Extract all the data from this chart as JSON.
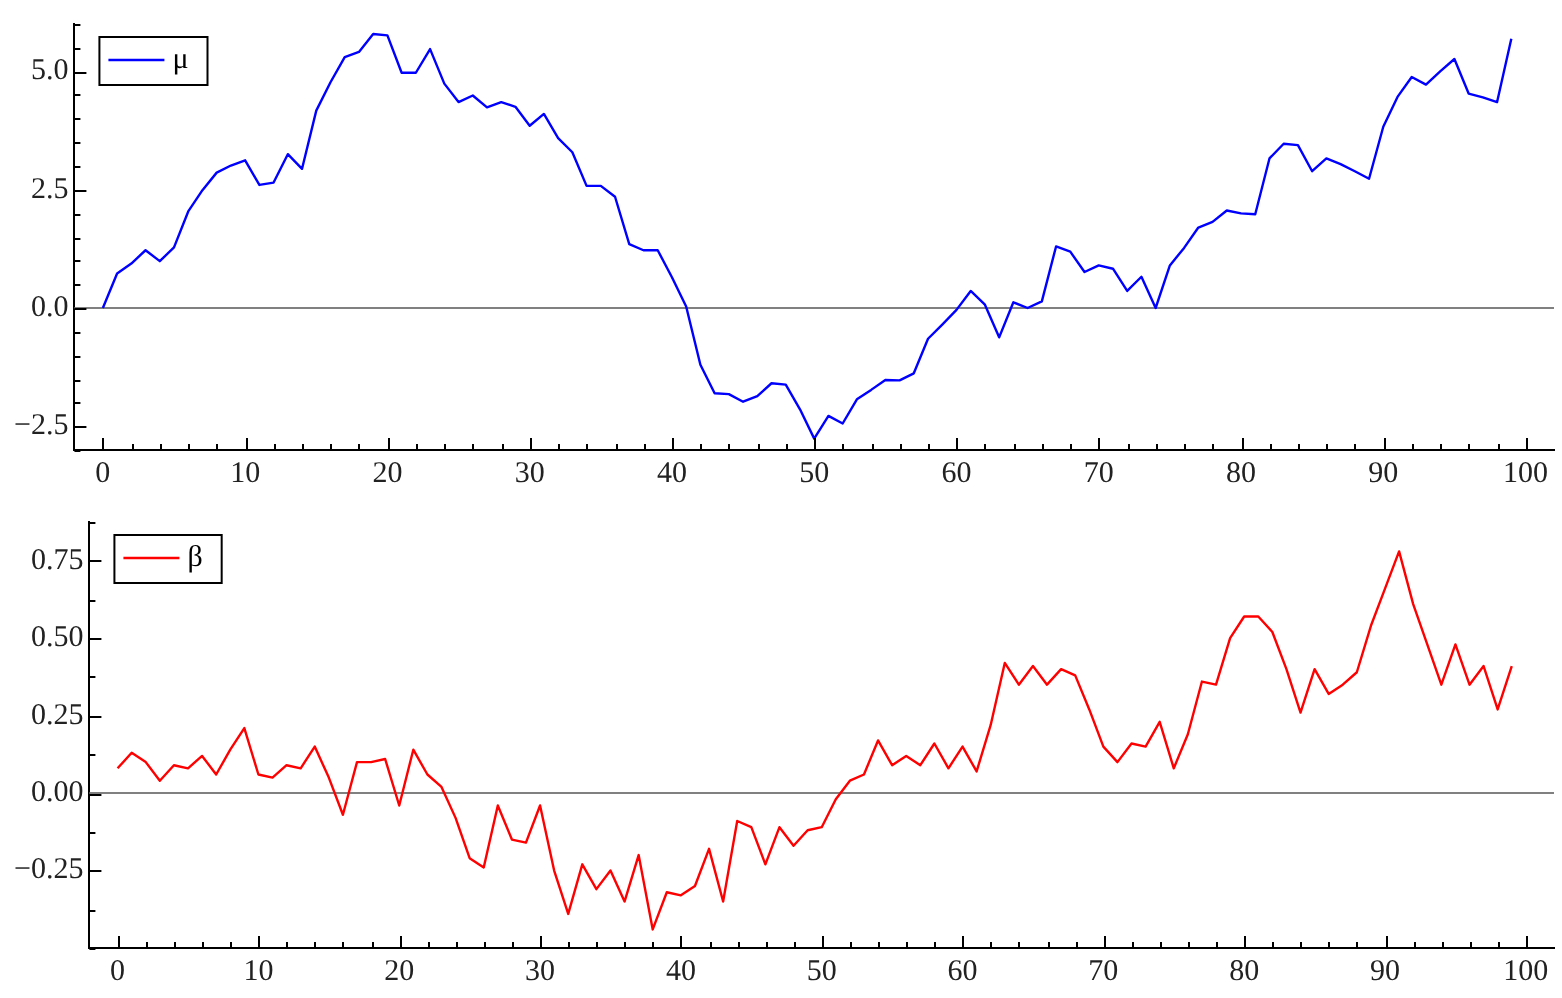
{
  "chart_data": [
    {
      "type": "line",
      "x": [
        0,
        1,
        2,
        3,
        4,
        5,
        6,
        7,
        8,
        9,
        10,
        11,
        12,
        13,
        14,
        15,
        16,
        17,
        18,
        19,
        20,
        21,
        22,
        23,
        24,
        25,
        26,
        27,
        28,
        29,
        30,
        31,
        32,
        33,
        34,
        35,
        36,
        37,
        38,
        39,
        40,
        41,
        42,
        43,
        44,
        45,
        46,
        47,
        48,
        49,
        50,
        51,
        52,
        53,
        54,
        55,
        56,
        57,
        58,
        59,
        60,
        61,
        62,
        63,
        64,
        65,
        66,
        67,
        68,
        69,
        70,
        71,
        72,
        73,
        74,
        75,
        76,
        77,
        78,
        79,
        80,
        81,
        82,
        83,
        84,
        85,
        86,
        87,
        88,
        89,
        90,
        91,
        92,
        93,
        94,
        95,
        96,
        97,
        98,
        99
      ],
      "series": [
        {
          "name": "μ",
          "color": "#0000ff",
          "values": [
            0,
            0.73,
            0.94,
            1.22,
            0.99,
            1.28,
            2.04,
            2.49,
            2.86,
            3.01,
            3.12,
            2.6,
            2.65,
            3.25,
            2.94,
            4.17,
            4.77,
            5.3,
            5.41,
            5.79,
            5.76,
            4.97,
            4.97,
            5.47,
            4.74,
            4.35,
            4.49,
            4.24,
            4.35,
            4.25,
            3.85,
            4.1,
            3.59,
            3.29,
            2.58,
            2.58,
            2.35,
            1.35,
            1.22,
            1.22,
            0.65,
            0.03,
            -1.2,
            -1.8,
            -1.82,
            -1.98,
            -1.86,
            -1.59,
            -1.62,
            -2.14,
            -2.76,
            -2.28,
            -2.44,
            -1.93,
            -1.73,
            -1.52,
            -1.53,
            -1.38,
            -0.65,
            -0.35,
            -0.04,
            0.36,
            0.07,
            -0.62,
            0.12,
            0,
            0.14,
            1.3,
            1.19,
            0.76,
            0.9,
            0.83,
            0.36,
            0.66,
            0,
            0.9,
            1.27,
            1.7,
            1.82,
            2.06,
            2,
            1.98,
            3.16,
            3.47,
            3.44,
            2.89,
            3.16,
            3.04,
            2.89,
            2.73,
            3.83,
            4.46,
            4.88,
            4.72,
            5,
            5.26,
            4.53,
            4.45,
            4.35,
            5.69
          ]
        }
      ],
      "xlim": [
        -2,
        102
      ],
      "xticks": [
        0,
        {
          "value": 2,
          "label": null
        },
        {
          "value": 4,
          "label": null
        },
        {
          "value": 6,
          "label": null
        },
        {
          "value": 8,
          "label": null
        },
        10,
        {
          "value": 12,
          "label": null
        },
        {
          "value": 14,
          "label": null
        },
        {
          "value": 16,
          "label": null
        },
        {
          "value": 18,
          "label": null
        },
        20,
        {
          "value": 22,
          "label": null
        },
        {
          "value": 24,
          "label": null
        },
        {
          "value": 26,
          "label": null
        },
        {
          "value": 28,
          "label": null
        },
        30,
        {
          "value": 32,
          "label": null
        },
        {
          "value": 34,
          "label": null
        },
        {
          "value": 36,
          "label": null
        },
        {
          "value": 38,
          "label": null
        },
        40,
        {
          "value": 42,
          "label": null
        },
        {
          "value": 44,
          "label": null
        },
        {
          "value": 46,
          "label": null
        },
        {
          "value": 48,
          "label": null
        },
        50,
        {
          "value": 52,
          "label": null
        },
        {
          "value": 54,
          "label": null
        },
        {
          "value": 56,
          "label": null
        },
        {
          "value": 58,
          "label": null
        },
        60,
        {
          "value": 62,
          "label": null
        },
        {
          "value": 64,
          "label": null
        },
        {
          "value": 66,
          "label": null
        },
        {
          "value": 68,
          "label": null
        },
        70,
        {
          "value": 72,
          "label": null
        },
        {
          "value": 74,
          "label": null
        },
        {
          "value": 76,
          "label": null
        },
        {
          "value": 78,
          "label": null
        },
        80,
        {
          "value": 82,
          "label": null
        },
        {
          "value": 84,
          "label": null
        },
        {
          "value": 86,
          "label": null
        },
        {
          "value": 88,
          "label": null
        },
        90,
        {
          "value": 92,
          "label": null
        },
        {
          "value": 94,
          "label": null
        },
        {
          "value": 96,
          "label": null
        },
        {
          "value": 98,
          "label": null
        },
        100
      ],
      "ylim": [
        -3,
        6
      ],
      "yticks": [
        {
          "value": -3,
          "label": null
        },
        {
          "value": -2.5,
          "label": "−2.5"
        },
        {
          "value": -2,
          "label": null
        },
        {
          "value": -1.5,
          "label": null
        },
        {
          "value": -1,
          "label": null
        },
        {
          "value": -0.5,
          "label": null
        },
        {
          "value": 0,
          "label": "0.0"
        },
        {
          "value": 0.5,
          "label": null
        },
        {
          "value": 1,
          "label": null
        },
        {
          "value": 1.5,
          "label": null
        },
        {
          "value": 2,
          "label": null
        },
        2.5,
        {
          "value": 3,
          "label": null
        },
        {
          "value": 3.5,
          "label": null
        },
        {
          "value": 4,
          "label": null
        },
        {
          "value": 4.5,
          "label": null
        },
        {
          "value": 5,
          "label": "5.0"
        },
        {
          "value": 5.5,
          "label": null
        },
        {
          "value": 6,
          "label": null
        }
      ],
      "ref_lines": [
        {
          "axis": "y",
          "value": 0,
          "color": "#808080"
        }
      ],
      "legend": "top left",
      "grid": false,
      "marker": "none",
      "line_style": "solid"
    },
    {
      "type": "line",
      "x": [
        0,
        1,
        2,
        3,
        4,
        5,
        6,
        7,
        8,
        9,
        10,
        11,
        12,
        13,
        14,
        15,
        16,
        17,
        18,
        19,
        20,
        21,
        22,
        23,
        24,
        25,
        26,
        27,
        28,
        29,
        30,
        31,
        32,
        33,
        34,
        35,
        36,
        37,
        38,
        39,
        40,
        41,
        42,
        43,
        44,
        45,
        46,
        47,
        48,
        49,
        50,
        51,
        52,
        53,
        54,
        55,
        56,
        57,
        58,
        59,
        60,
        61,
        62,
        63,
        64,
        65,
        66,
        67,
        68,
        69,
        70,
        71,
        72,
        73,
        74,
        75,
        76,
        77,
        78,
        79,
        80,
        81,
        82,
        83,
        84,
        85,
        86,
        87,
        88,
        89,
        90,
        91,
        92,
        93,
        94,
        95,
        96,
        97,
        98,
        99
      ],
      "series": [
        {
          "name": "β",
          "color": "#ff0000",
          "values": [
            0.08,
            0.13,
            0.1,
            0.04,
            0.09,
            0.08,
            0.12,
            0.06,
            0.14,
            0.21,
            0.06,
            0.05,
            0.09,
            0.08,
            0.15,
            0.05,
            -0.07,
            0.1,
            0.1,
            0.11,
            -0.04,
            0.14,
            0.06,
            0.02,
            -0.08,
            -0.21,
            -0.24,
            -0.04,
            -0.15,
            -0.16,
            -0.04,
            -0.25,
            -0.39,
            -0.23,
            -0.31,
            -0.25,
            -0.35,
            -0.2,
            -0.44,
            -0.32,
            -0.33,
            -0.3,
            -0.18,
            -0.35,
            -0.09,
            -0.11,
            -0.23,
            -0.11,
            -0.17,
            -0.12,
            -0.11,
            -0.02,
            0.04,
            0.06,
            0.17,
            0.09,
            0.12,
            0.09,
            0.16,
            0.08,
            0.15,
            0.07,
            0.22,
            0.42,
            0.35,
            0.41,
            0.35,
            0.4,
            0.38,
            0.27,
            0.15,
            0.1,
            0.16,
            0.15,
            0.23,
            0.08,
            0.19,
            0.36,
            0.35,
            0.5,
            0.57,
            0.57,
            0.52,
            0.4,
            0.26,
            0.4,
            0.32,
            0.35,
            0.39,
            0.54,
            0.66,
            0.78,
            0.61,
            0.48,
            0.35,
            0.48,
            0.35,
            0.41,
            0.27,
            0.41
          ]
        }
      ],
      "xlim": [
        -2,
        102
      ],
      "xticks": [
        0,
        {
          "value": 2,
          "label": null
        },
        {
          "value": 4,
          "label": null
        },
        {
          "value": 6,
          "label": null
        },
        {
          "value": 8,
          "label": null
        },
        10,
        {
          "value": 12,
          "label": null
        },
        {
          "value": 14,
          "label": null
        },
        {
          "value": 16,
          "label": null
        },
        {
          "value": 18,
          "label": null
        },
        20,
        {
          "value": 22,
          "label": null
        },
        {
          "value": 24,
          "label": null
        },
        {
          "value": 26,
          "label": null
        },
        {
          "value": 28,
          "label": null
        },
        30,
        {
          "value": 32,
          "label": null
        },
        {
          "value": 34,
          "label": null
        },
        {
          "value": 36,
          "label": null
        },
        {
          "value": 38,
          "label": null
        },
        40,
        {
          "value": 42,
          "label": null
        },
        {
          "value": 44,
          "label": null
        },
        {
          "value": 46,
          "label": null
        },
        {
          "value": 48,
          "label": null
        },
        50,
        {
          "value": 52,
          "label": null
        },
        {
          "value": 54,
          "label": null
        },
        {
          "value": 56,
          "label": null
        },
        {
          "value": 58,
          "label": null
        },
        60,
        {
          "value": 62,
          "label": null
        },
        {
          "value": 64,
          "label": null
        },
        {
          "value": 66,
          "label": null
        },
        {
          "value": 68,
          "label": null
        },
        70,
        {
          "value": 72,
          "label": null
        },
        {
          "value": 74,
          "label": null
        },
        {
          "value": 76,
          "label": null
        },
        {
          "value": 78,
          "label": null
        },
        80,
        {
          "value": 82,
          "label": null
        },
        {
          "value": 84,
          "label": null
        },
        {
          "value": 86,
          "label": null
        },
        {
          "value": 88,
          "label": null
        },
        90,
        {
          "value": 92,
          "label": null
        },
        {
          "value": 94,
          "label": null
        },
        {
          "value": 96,
          "label": null
        },
        {
          "value": 98,
          "label": null
        },
        100
      ],
      "ylim": [
        -0.5,
        0.875
      ],
      "yticks": [
        {
          "value": -0.5,
          "label": null
        },
        {
          "value": -0.375,
          "label": null
        },
        {
          "value": -0.25,
          "label": "−0.25"
        },
        {
          "value": -0.125,
          "label": null
        },
        {
          "value": 0,
          "label": "0.00"
        },
        {
          "value": 0.125,
          "label": null
        },
        {
          "value": 0.25,
          "label": "0.25"
        },
        {
          "value": 0.375,
          "label": null
        },
        {
          "value": 0.5,
          "label": "0.50"
        },
        {
          "value": 0.625,
          "label": null
        },
        0.75,
        {
          "value": 0.875,
          "label": null
        }
      ],
      "ref_lines": [
        {
          "axis": "y",
          "value": 0,
          "color": "#808080"
        }
      ],
      "legend": "top left",
      "grid": false,
      "marker": "none",
      "line_style": "solid"
    }
  ]
}
